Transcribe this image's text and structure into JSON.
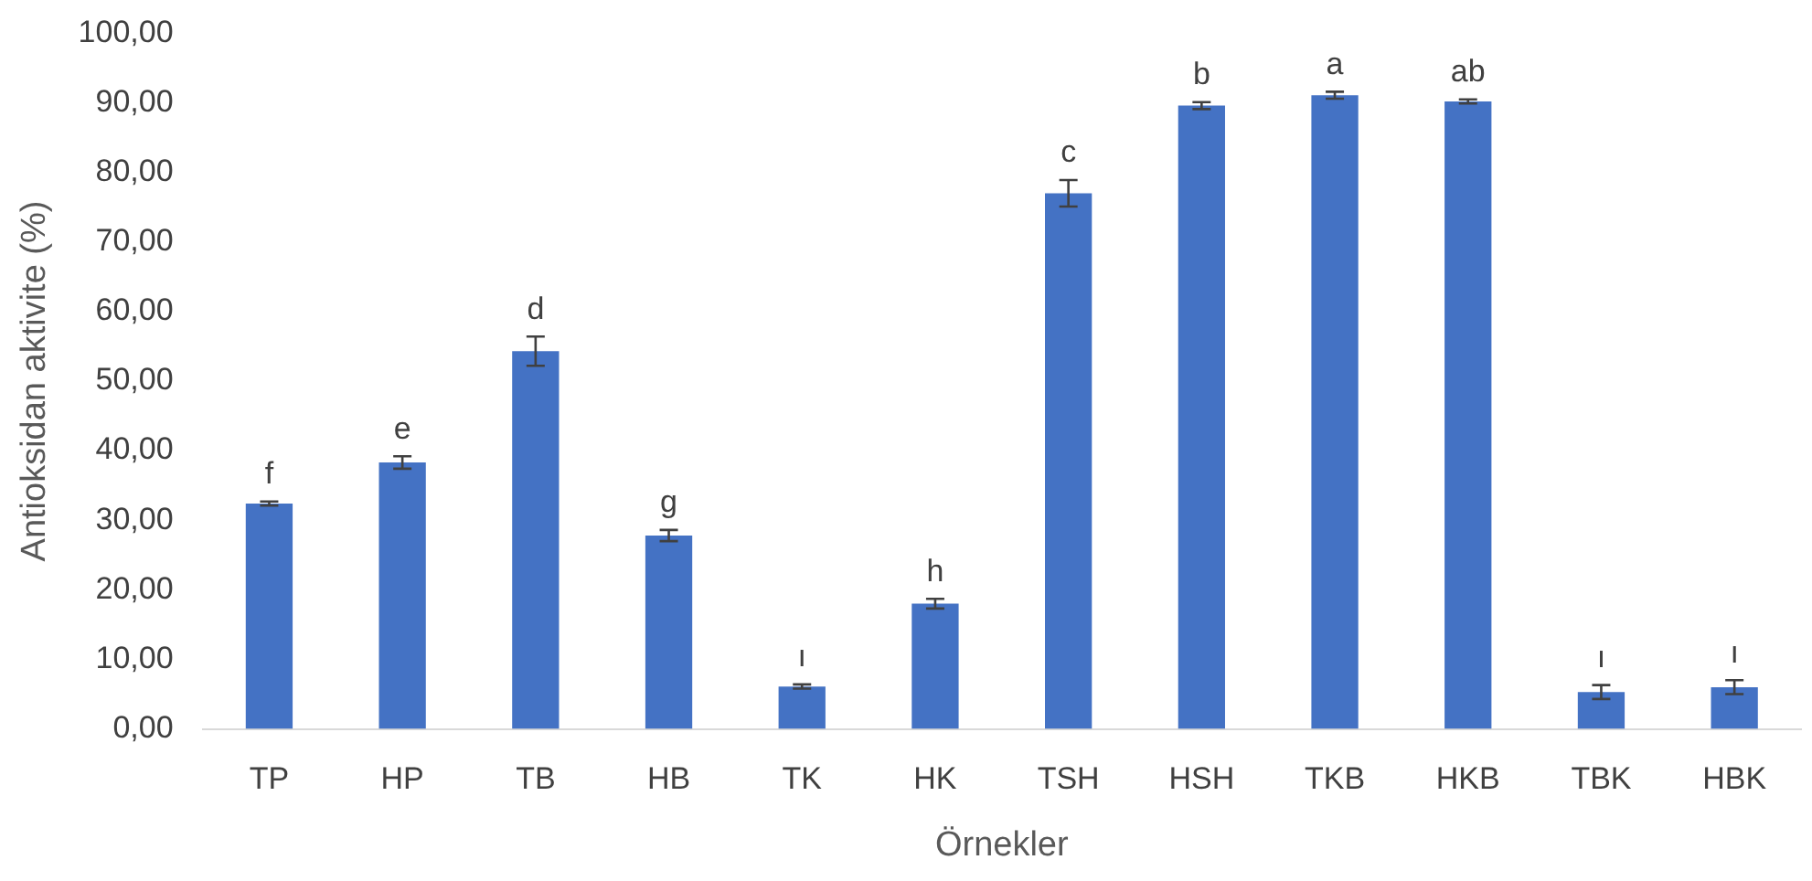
{
  "chart_data": {
    "type": "bar",
    "xlabel": "Örnekler",
    "ylabel": "Antioksidan aktivite (%)",
    "categories": [
      "TP",
      "HP",
      "TB",
      "HB",
      "TK",
      "HK",
      "TSH",
      "HSH",
      "TKB",
      "HKB",
      "TBK",
      "HBK"
    ],
    "values": [
      32.4,
      38.3,
      54.3,
      27.8,
      6.1,
      18.0,
      77.0,
      89.6,
      91.1,
      90.2,
      5.3,
      6.0
    ],
    "errors": [
      0.3,
      0.9,
      2.1,
      0.8,
      0.3,
      0.7,
      1.9,
      0.5,
      0.5,
      0.3,
      1.0,
      1.0
    ],
    "color": "#4472c4",
    "ylim": [
      0,
      100
    ],
    "yticks": [
      {
        "value": 0,
        "label": "0,00"
      },
      {
        "value": 10,
        "label": "10,00"
      },
      {
        "value": 20,
        "label": "20,00"
      },
      {
        "value": 30,
        "label": "30,00"
      },
      {
        "value": 40,
        "label": "40,00"
      },
      {
        "value": 50,
        "label": "50,00"
      },
      {
        "value": 60,
        "label": "60,00"
      },
      {
        "value": 70,
        "label": "70,00"
      },
      {
        "value": 80,
        "label": "80,00"
      },
      {
        "value": 90,
        "label": "90,00"
      },
      {
        "value": 100,
        "label": "100,00"
      }
    ],
    "annotations": [
      {
        "text": "f",
        "x": "TP",
        "y": 32.7
      },
      {
        "text": "e",
        "x": "HP",
        "y": 39.2
      },
      {
        "text": "d",
        "x": "TB",
        "y": 56.4
      },
      {
        "text": "g",
        "x": "HB",
        "y": 28.6
      },
      {
        "text": "ı",
        "x": "TK",
        "y": 6.4
      },
      {
        "text": "h",
        "x": "HK",
        "y": 18.7
      },
      {
        "text": "c",
        "x": "TSH",
        "y": 78.9
      },
      {
        "text": "b",
        "x": "HSH",
        "y": 90.1
      },
      {
        "text": "a",
        "x": "TKB",
        "y": 91.6
      },
      {
        "text": "ab",
        "x": "HKB",
        "y": 90.5
      },
      {
        "text": "ı",
        "x": "TBK",
        "y": 6.3
      },
      {
        "text": "ı",
        "x": "HBK",
        "y": 7.0
      }
    ],
    "grid": false,
    "legend": false
  }
}
